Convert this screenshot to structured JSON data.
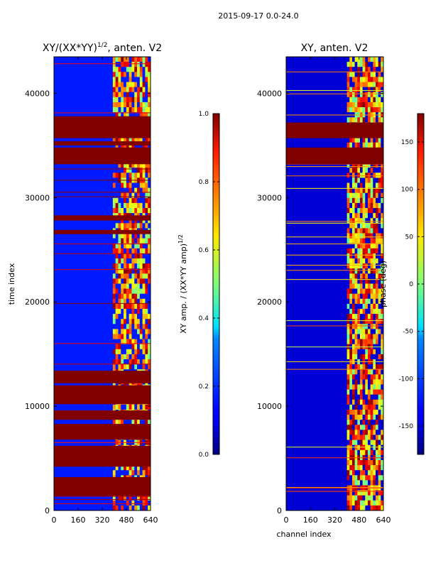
{
  "suptitle": "2015-09-17 0.0-24.0",
  "chart_data": [
    {
      "type": "heatmap",
      "title_prefix": "XY/(XX*YY)",
      "title_exp": "1/2",
      "title_suffix": ", anten. V2",
      "xlabel": "",
      "ylabel": "time index",
      "xlim": [
        0,
        640
      ],
      "ylim": [
        0,
        43500
      ],
      "xticks": [
        0,
        160,
        320,
        480,
        640
      ],
      "yticks": [
        0,
        10000,
        20000,
        30000,
        40000
      ],
      "colormap": "jet",
      "colorbar": {
        "label_prefix": "XY amp. / (XX*YY amp)",
        "label_exp": "1/2",
        "range": [
          0.0,
          1.0
        ],
        "ticks": [
          "0.0",
          "0.2",
          "0.4",
          "0.6",
          "0.8",
          "1.0"
        ]
      },
      "active_channels": [
        390,
        640
      ],
      "saturated_time_bands": [
        [
          1400,
          3200
        ],
        [
          4200,
          6200
        ],
        [
          6800,
          8300
        ],
        [
          8700,
          9600
        ],
        [
          10200,
          12000
        ],
        [
          12200,
          13400
        ],
        [
          26500,
          26900
        ],
        [
          27800,
          28300
        ],
        [
          33200,
          34800
        ],
        [
          35000,
          35400
        ],
        [
          35700,
          37800
        ]
      ],
      "background_level": 0.15
    },
    {
      "type": "heatmap",
      "title": "XY, anten. V2",
      "xlabel": "channel index",
      "ylabel": "",
      "xlim": [
        0,
        640
      ],
      "ylim": [
        0,
        43500
      ],
      "xticks": [
        0,
        160,
        320,
        480,
        640
      ],
      "yticks": [
        0,
        10000,
        20000,
        30000,
        40000
      ],
      "colormap": "jet",
      "colorbar": {
        "label": "phase (deg)",
        "range": [
          -180,
          180
        ],
        "ticks": [
          "150",
          "100",
          "50",
          "0",
          "-50",
          "-100",
          "-150"
        ]
      },
      "active_channels": [
        400,
        640
      ],
      "saturated_time_bands": [
        [
          33200,
          34800
        ],
        [
          35700,
          37200
        ]
      ],
      "background_level": -150
    }
  ]
}
